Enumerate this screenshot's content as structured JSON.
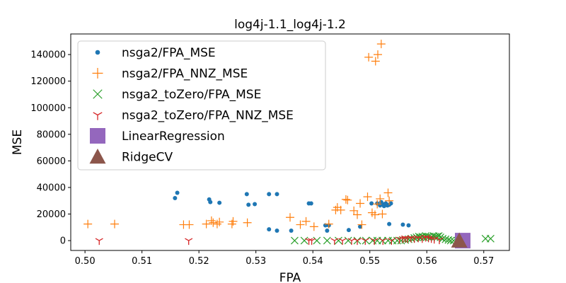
{
  "chart_data": {
    "type": "scatter",
    "title": "log4j-1.1_log4j-1.2",
    "xlabel": "FPA",
    "ylabel": "MSE",
    "xlim": [
      0.4975,
      0.5745
    ],
    "ylim": [
      -7400,
      155500
    ],
    "x_ticks": [
      0.5,
      0.51,
      0.52,
      0.53,
      0.54,
      0.55,
      0.56,
      0.57
    ],
    "x_tick_labels": [
      "0.50",
      "0.51",
      "0.52",
      "0.53",
      "0.54",
      "0.55",
      "0.56",
      "0.57"
    ],
    "y_ticks": [
      0,
      20000,
      40000,
      60000,
      80000,
      100000,
      120000,
      140000
    ],
    "y_tick_labels": [
      "0",
      "20000",
      "40000",
      "60000",
      "80000",
      "100000",
      "120000",
      "140000"
    ],
    "grid": false,
    "legend_position": "top-left",
    "series": [
      {
        "name": "nsga2/FPA_MSE",
        "marker": "dot",
        "color": "#1f77b4",
        "points": [
          [
            0.5158,
            32000
          ],
          [
            0.5162,
            36000
          ],
          [
            0.5218,
            31000
          ],
          [
            0.522,
            29000
          ],
          [
            0.5236,
            28500
          ],
          [
            0.5284,
            35000
          ],
          [
            0.5287,
            27000
          ],
          [
            0.5298,
            27500
          ],
          [
            0.5323,
            35000
          ],
          [
            0.5337,
            35000
          ],
          [
            0.5323,
            8500
          ],
          [
            0.5337,
            7500
          ],
          [
            0.5362,
            7500
          ],
          [
            0.5393,
            28000
          ],
          [
            0.5397,
            28000
          ],
          [
            0.5422,
            11500
          ],
          [
            0.5428,
            11500
          ],
          [
            0.5425,
            7500
          ],
          [
            0.5463,
            8000
          ],
          [
            0.5483,
            10500
          ],
          [
            0.5503,
            28000
          ],
          [
            0.5513,
            28000
          ],
          [
            0.5518,
            26500
          ],
          [
            0.552,
            29000
          ],
          [
            0.5523,
            27500
          ],
          [
            0.5525,
            26000
          ],
          [
            0.5528,
            28000
          ],
          [
            0.5531,
            26500
          ],
          [
            0.5534,
            27000
          ],
          [
            0.5537,
            28000
          ],
          [
            0.5534,
            12500
          ],
          [
            0.5558,
            12000
          ],
          [
            0.5568,
            11500
          ]
        ]
      },
      {
        "name": "nsga2/FPA_NNZ_MSE",
        "marker": "plus",
        "color": "#ff7f0e",
        "points": [
          [
            0.5005,
            12500
          ],
          [
            0.5052,
            12500
          ],
          [
            0.5173,
            12000
          ],
          [
            0.5183,
            12000
          ],
          [
            0.5213,
            12500
          ],
          [
            0.5222,
            15000
          ],
          [
            0.5225,
            13500
          ],
          [
            0.5232,
            12500
          ],
          [
            0.5236,
            14000
          ],
          [
            0.5258,
            12500
          ],
          [
            0.526,
            14500
          ],
          [
            0.5285,
            13500
          ],
          [
            0.536,
            17500
          ],
          [
            0.5378,
            12000
          ],
          [
            0.5388,
            14500
          ],
          [
            0.5402,
            10500
          ],
          [
            0.5428,
            12500
          ],
          [
            0.544,
            23000
          ],
          [
            0.5443,
            25000
          ],
          [
            0.5449,
            23000
          ],
          [
            0.5458,
            31000
          ],
          [
            0.5461,
            30500
          ],
          [
            0.5472,
            22500
          ],
          [
            0.5478,
            19500
          ],
          [
            0.5483,
            28000
          ],
          [
            0.5486,
            12000
          ],
          [
            0.5496,
            33000
          ],
          [
            0.5504,
            21000
          ],
          [
            0.5509,
            19500
          ],
          [
            0.5513,
            27500
          ],
          [
            0.5518,
            31500
          ],
          [
            0.5522,
            20000
          ],
          [
            0.5532,
            36000
          ],
          [
            0.5534,
            30000
          ],
          [
            0.5498,
            138000
          ],
          [
            0.551,
            135000
          ],
          [
            0.5514,
            140000
          ],
          [
            0.552,
            148000
          ]
        ]
      },
      {
        "name": "nsga2_toZero/FPA_MSE",
        "marker": "x",
        "color": "#2ca02c",
        "points": [
          [
            0.5368,
            0
          ],
          [
            0.5385,
            0
          ],
          [
            0.5407,
            0
          ],
          [
            0.5425,
            0
          ],
          [
            0.5445,
            0
          ],
          [
            0.5462,
            0
          ],
          [
            0.5478,
            0
          ],
          [
            0.5493,
            0
          ],
          [
            0.5505,
            0
          ],
          [
            0.5513,
            0
          ],
          [
            0.5522,
            0
          ],
          [
            0.5532,
            0
          ],
          [
            0.554,
            0
          ],
          [
            0.5548,
            0
          ],
          [
            0.5555,
            0
          ],
          [
            0.5562,
            500
          ],
          [
            0.5568,
            1000
          ],
          [
            0.5573,
            1500
          ],
          [
            0.5578,
            2000
          ],
          [
            0.5582,
            2500
          ],
          [
            0.5586,
            3000
          ],
          [
            0.5589,
            2500
          ],
          [
            0.5592,
            3000
          ],
          [
            0.5595,
            2500
          ],
          [
            0.5598,
            3500
          ],
          [
            0.5601,
            3000
          ],
          [
            0.5604,
            3000
          ],
          [
            0.5608,
            2500
          ],
          [
            0.5612,
            3500
          ],
          [
            0.5615,
            3000
          ],
          [
            0.5618,
            3000
          ],
          [
            0.5621,
            3500
          ],
          [
            0.5624,
            2500
          ],
          [
            0.5628,
            1500
          ],
          [
            0.5633,
            1000
          ],
          [
            0.5638,
            500
          ],
          [
            0.5642,
            0
          ],
          [
            0.5647,
            0
          ],
          [
            0.5654,
            0
          ],
          [
            0.5703,
            1500
          ],
          [
            0.5712,
            1500
          ]
        ]
      },
      {
        "name": "nsga2_toZero/FPA_NNZ_MSE",
        "marker": "tri_down",
        "color": "#d62728",
        "points": [
          [
            0.5025,
            0
          ],
          [
            0.5182,
            0
          ],
          [
            0.5393,
            0
          ],
          [
            0.5398,
            0
          ],
          [
            0.5438,
            0
          ],
          [
            0.5452,
            0
          ],
          [
            0.5468,
            0
          ],
          [
            0.5478,
            0
          ],
          [
            0.5492,
            0
          ],
          [
            0.5508,
            0
          ],
          [
            0.5523,
            0
          ],
          [
            0.5538,
            0
          ],
          [
            0.5552,
            1000
          ],
          [
            0.5558,
            1500
          ],
          [
            0.5562,
            2000
          ],
          [
            0.5566,
            1500
          ],
          [
            0.5572,
            2000
          ],
          [
            0.5578,
            1500
          ],
          [
            0.5585,
            2000
          ],
          [
            0.5592,
            1500
          ],
          [
            0.5598,
            2500
          ],
          [
            0.5603,
            2000
          ],
          [
            0.5608,
            1500
          ],
          [
            0.5613,
            1000
          ],
          [
            0.5622,
            500
          ]
        ]
      },
      {
        "name": "LinearRegression",
        "marker": "square",
        "color": "#9467bd",
        "points": [
          [
            0.5663,
            0
          ]
        ]
      },
      {
        "name": "RidgeCV",
        "marker": "triangle",
        "color": "#8c564b",
        "points": [
          [
            0.5657,
            0
          ]
        ]
      }
    ]
  }
}
